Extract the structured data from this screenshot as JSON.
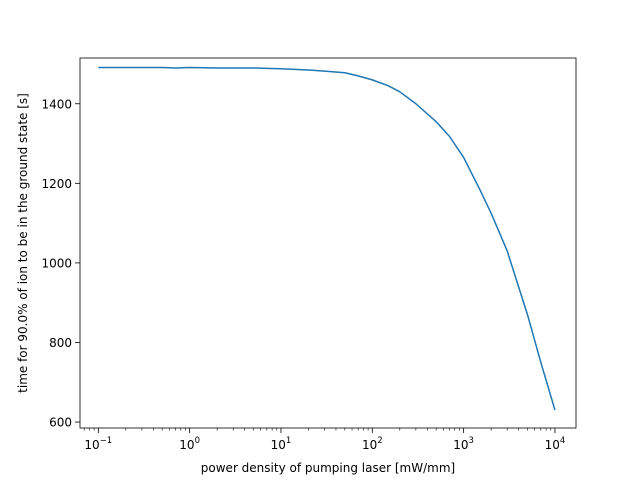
{
  "chart_data": {
    "type": "line",
    "title": "",
    "xlabel": "power density of pumping laser [mW/mm]",
    "ylabel": "time for 90.0% of ion to be in the ground state [s]",
    "xscale": "log",
    "xlim": [
      0.063,
      17000
    ],
    "ylim": [
      585,
      1515
    ],
    "grid": false,
    "line_color": "#1f77b4",
    "x_ticks": [
      {
        "value": 0.1,
        "base": "10",
        "exp": "−1"
      },
      {
        "value": 1,
        "base": "10",
        "exp": "0"
      },
      {
        "value": 10,
        "base": "10",
        "exp": "1"
      },
      {
        "value": 100,
        "base": "10",
        "exp": "2"
      },
      {
        "value": 1000,
        "base": "10",
        "exp": "3"
      },
      {
        "value": 10000,
        "base": "10",
        "exp": "4"
      }
    ],
    "y_ticks": [
      {
        "value": 600,
        "label": "600"
      },
      {
        "value": 800,
        "label": "800"
      },
      {
        "value": 1000,
        "label": "1000"
      },
      {
        "value": 1200,
        "label": "1200"
      },
      {
        "value": 1400,
        "label": "1400"
      }
    ],
    "series": [
      {
        "x": [
          0.1,
          0.15,
          0.2,
          0.3,
          0.5,
          0.7,
          1,
          2,
          3,
          5,
          7,
          10,
          20,
          30,
          50,
          70,
          100,
          150,
          200,
          300,
          500,
          700,
          1000,
          1500,
          2000,
          3000,
          5000,
          7000,
          10000
        ],
        "y": [
          1491,
          1491,
          1491,
          1491,
          1491,
          1490,
          1491,
          1490,
          1490,
          1490,
          1489,
          1488,
          1485,
          1482,
          1478,
          1470,
          1460,
          1445,
          1430,
          1400,
          1355,
          1318,
          1265,
          1185,
          1125,
          1030,
          870,
          750,
          630
        ]
      }
    ]
  }
}
